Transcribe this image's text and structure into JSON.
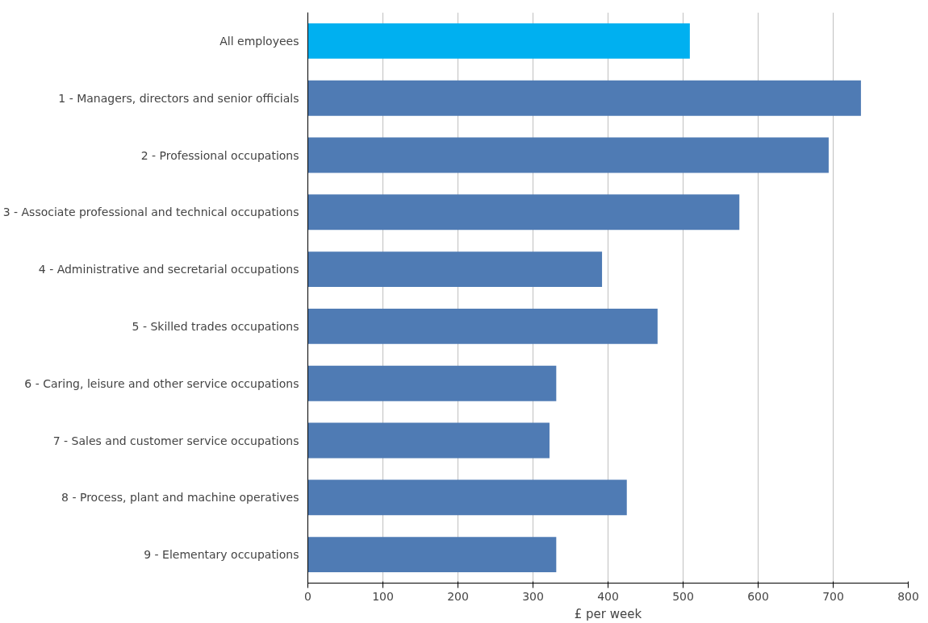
{
  "chart_data": {
    "type": "bar",
    "orientation": "horizontal",
    "xlabel": "£ per week",
    "categories": [
      "All employees",
      "1 - Managers, directors and senior officials",
      "2 - Professional occupations",
      "3 - Associate professional and technical occupations",
      "4 - Administrative and secretarial occupations",
      "5 - Skilled trades occupations",
      "6 - Caring, leisure and other service occupations",
      "7 - Sales and customer service occupations",
      "8 - Process, plant and machine operatives",
      "9 - Elementary occupations"
    ],
    "values": [
      509,
      737,
      694,
      575,
      392,
      466,
      331,
      322,
      425,
      331
    ],
    "colors": [
      "#00b0f0",
      "#4f7bb4",
      "#4f7bb4",
      "#4f7bb4",
      "#4f7bb4",
      "#4f7bb4",
      "#4f7bb4",
      "#4f7bb4",
      "#4f7bb4",
      "#4f7bb4"
    ],
    "xlim": [
      0,
      800
    ],
    "xticks": [
      0,
      100,
      200,
      300,
      400,
      500,
      600,
      700,
      800
    ],
    "grid": "x"
  }
}
